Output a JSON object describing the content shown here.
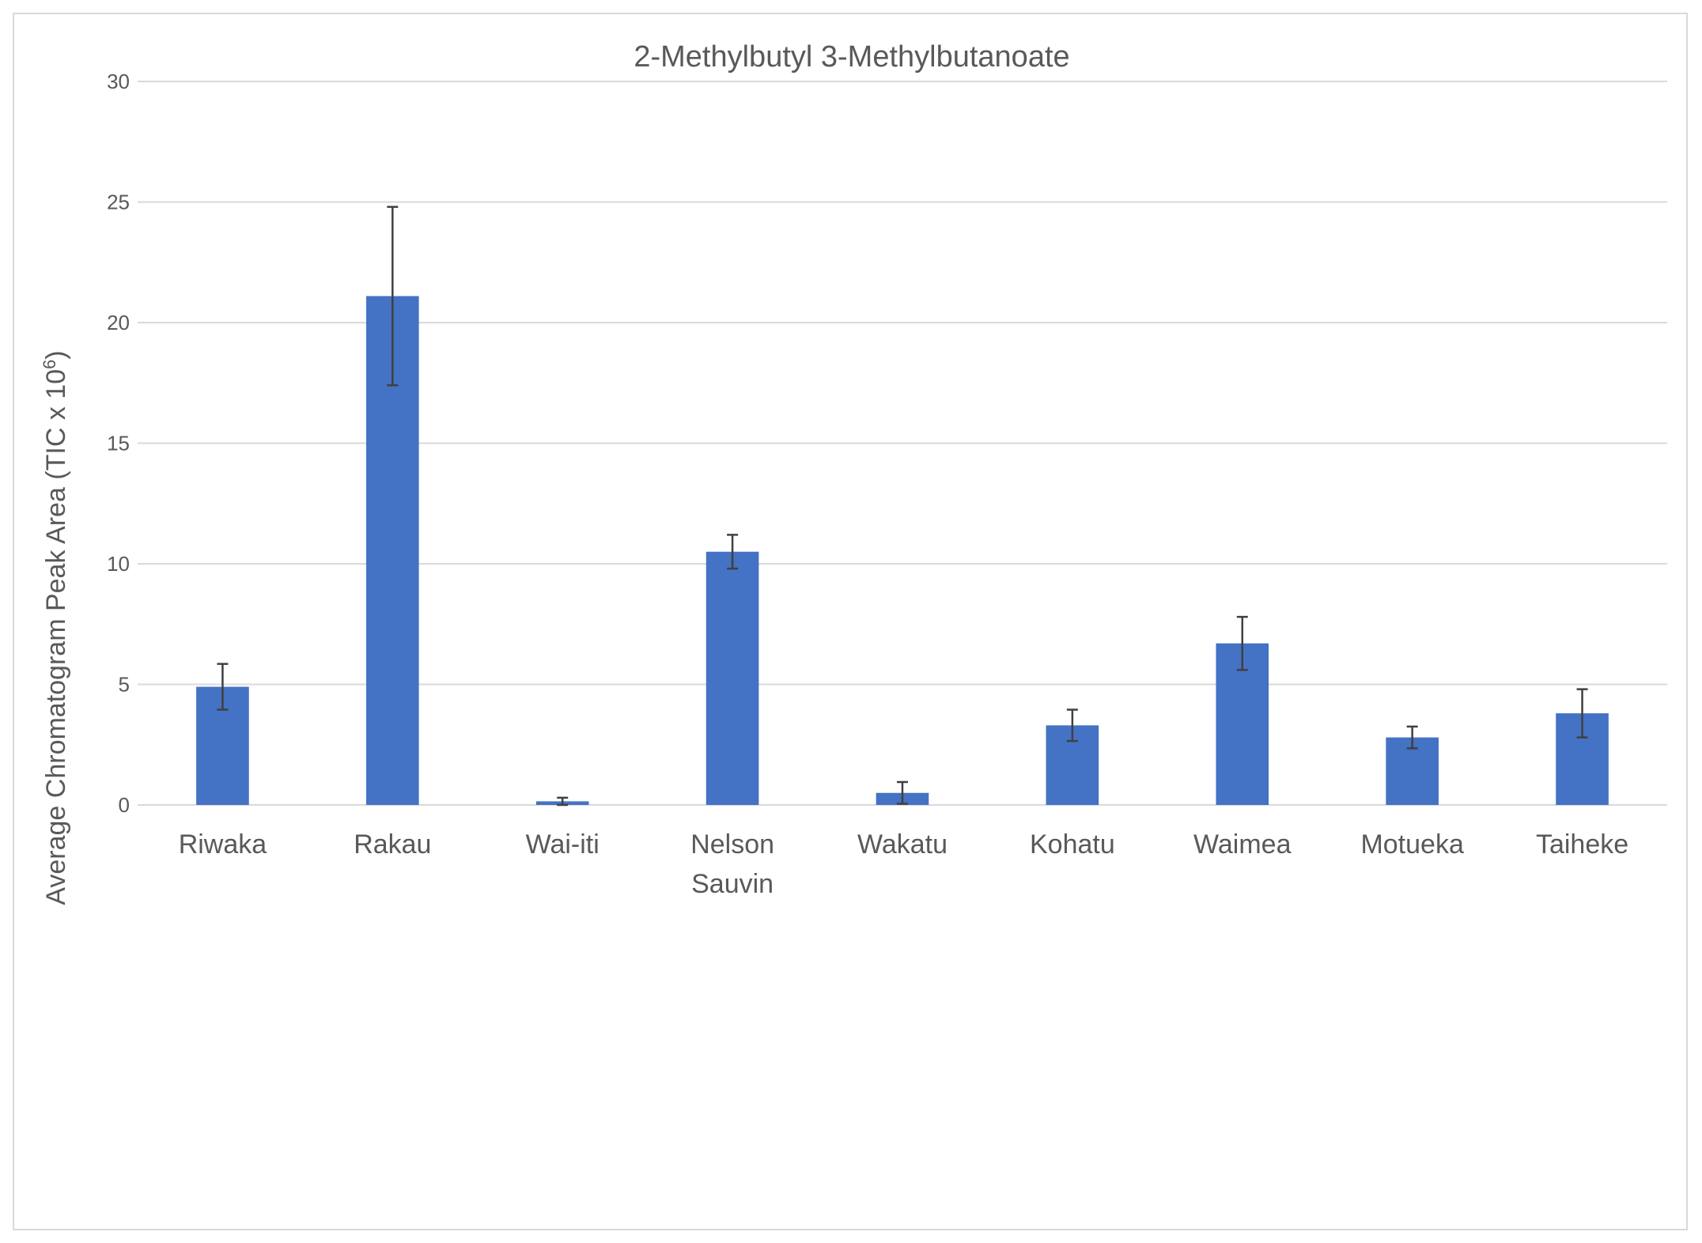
{
  "chart_data": {
    "type": "bar",
    "title": "2-Methylbutyl 3-Methylbutanoate",
    "ylabel": "Average Chromatogram Peak Area (TIC x 10",
    "ylabel_superscript": "6",
    "ylabel_suffix": ")",
    "xlabel": "",
    "ylim": [
      0,
      30
    ],
    "yticks": [
      0,
      5,
      10,
      15,
      20,
      25,
      30
    ],
    "grid": true,
    "legend": "none",
    "bar_color": "#4472c4",
    "categories": [
      [
        "Riwaka"
      ],
      [
        "Rakau"
      ],
      [
        "Wai-iti"
      ],
      [
        "Nelson",
        "Sauvin"
      ],
      [
        "Wakatu"
      ],
      [
        "Kohatu"
      ],
      [
        "Waimea"
      ],
      [
        "Motueka"
      ],
      [
        "Taiheke"
      ]
    ],
    "values": [
      4.9,
      21.1,
      0.15,
      10.5,
      0.5,
      3.3,
      6.7,
      2.8,
      3.8
    ],
    "error": [
      0.95,
      3.7,
      0.15,
      0.7,
      0.45,
      0.65,
      1.1,
      0.45,
      1.0
    ]
  }
}
